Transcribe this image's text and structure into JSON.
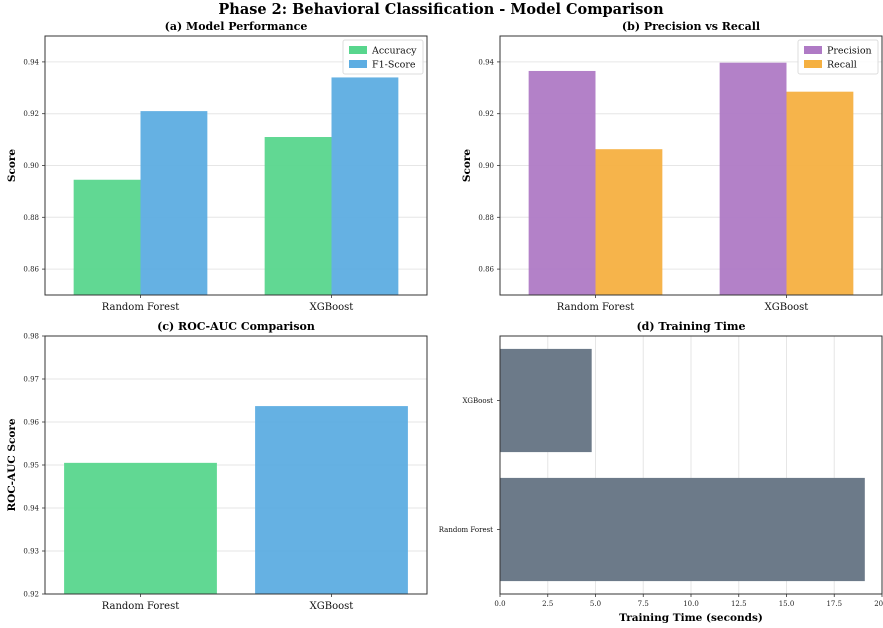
{
  "figure_title": "Phase 2: Behavioral Classification - Model Comparison",
  "colors": {
    "green": "#58d68d",
    "blue": "#5dade2",
    "purple": "#af7ac5",
    "orange": "#f5b041",
    "slate": "#6c7a89"
  },
  "chart_data": [
    {
      "id": "a",
      "type": "bar",
      "title": "(a) Model Performance",
      "xlabel": "",
      "ylabel": "Score",
      "ylim": [
        0.85,
        0.95
      ],
      "yticks": [
        "0.86",
        "0.88",
        "0.90",
        "0.92",
        "0.94"
      ],
      "categories": [
        "Random Forest",
        "XGBoost"
      ],
      "series": [
        {
          "name": "Accuracy",
          "values": [
            0.8945,
            0.911
          ],
          "color": "#58d68d"
        },
        {
          "name": "F1-Score",
          "values": [
            0.921,
            0.934
          ],
          "color": "#5dade2"
        }
      ],
      "legend": "top-right",
      "grid": "y"
    },
    {
      "id": "b",
      "type": "bar",
      "title": "(b) Precision vs Recall",
      "xlabel": "",
      "ylabel": "Score",
      "ylim": [
        0.85,
        0.95
      ],
      "yticks": [
        "0.86",
        "0.88",
        "0.90",
        "0.92",
        "0.94"
      ],
      "categories": [
        "Random Forest",
        "XGBoost"
      ],
      "series": [
        {
          "name": "Precision",
          "values": [
            0.9365,
            0.9397
          ],
          "color": "#af7ac5"
        },
        {
          "name": "Recall",
          "values": [
            0.9063,
            0.9285
          ],
          "color": "#f5b041"
        }
      ],
      "legend": "top-right",
      "grid": "y"
    },
    {
      "id": "c",
      "type": "bar",
      "title": "(c) ROC-AUC Comparison",
      "xlabel": "",
      "ylabel": "ROC-AUC Score",
      "ylim": [
        0.92,
        0.98
      ],
      "yticks": [
        "0.92",
        "0.93",
        "0.94",
        "0.95",
        "0.96",
        "0.97",
        "0.98"
      ],
      "categories": [
        "Random Forest",
        "XGBoost"
      ],
      "values": [
        0.9505,
        0.9637
      ],
      "colors": [
        "#58d68d",
        "#5dade2"
      ],
      "grid": "y"
    },
    {
      "id": "d",
      "type": "bar",
      "orientation": "horizontal",
      "title": "(d) Training Time",
      "xlabel": "Training Time (seconds)",
      "ylabel": "",
      "xlim": [
        0,
        20
      ],
      "xticks": [
        "0.0",
        "2.5",
        "5.0",
        "7.5",
        "10.0",
        "12.5",
        "15.0",
        "17.5",
        "20.0"
      ],
      "categories": [
        "Random Forest",
        "XGBoost"
      ],
      "values": [
        19.1,
        4.8
      ],
      "color": "#6c7a89",
      "grid": "x"
    }
  ]
}
